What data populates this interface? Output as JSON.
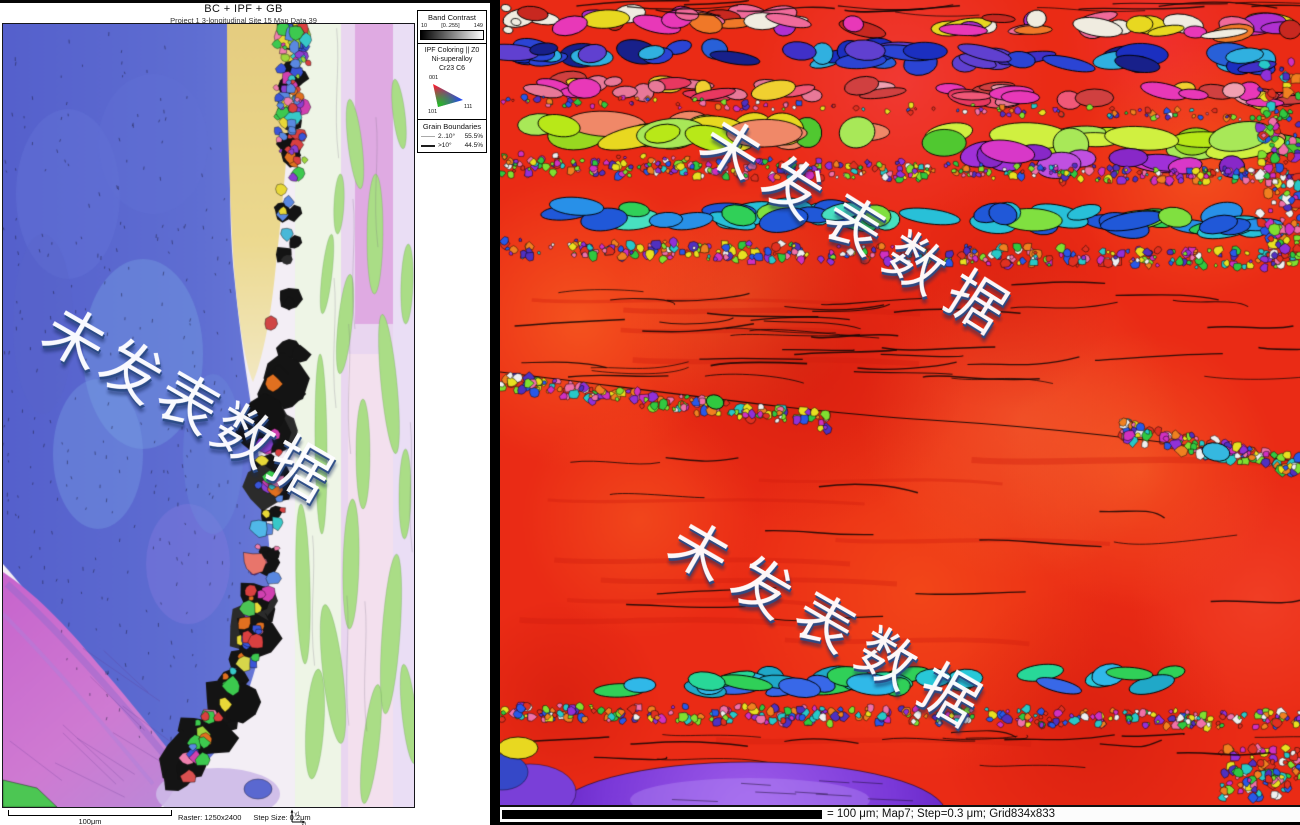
{
  "watermark": {
    "text": "未发表数据"
  },
  "left_panel": {
    "title": "BC + IPF + GB",
    "subtitle": "Project 1 3-longitudinal Site 15 Map Data 39",
    "scale_bar_label": "100μm",
    "raster_label": "Raster: 1250x2400",
    "step_label": "Step Size: 0.2μm",
    "axis_y_label": "y1",
    "axis_x_label": "x1",
    "legend": {
      "band_contrast": {
        "title": "Band Contrast",
        "min": "10",
        "range": "[0..255]",
        "max": "149"
      },
      "ipf": {
        "title": "IPF Coloring || Z0",
        "material": "Ni-superalloy",
        "phase": "Cr23 C6",
        "corner_001": "001",
        "corner_101": "101",
        "corner_111": "111"
      },
      "grain_boundaries": {
        "title": "Grain Boundaries",
        "rows": [
          {
            "label": "2..10°",
            "value": "55.5%"
          },
          {
            "label": ">10°",
            "value": "44.5%"
          }
        ]
      }
    }
  },
  "right_panel": {
    "scale_text": "= 100 μm; Map7; Step=0.3 μm; Grid834x833"
  },
  "colors": {
    "right_map_base": "#ea2b15",
    "left_map_blue": "#5a68cf",
    "left_map_magenta": "#c765cd",
    "left_map_yellow": "#e6d084",
    "watermark_fill": "#ffffff",
    "watermark_shadow": "#2a4a85",
    "separator": "#000000"
  }
}
